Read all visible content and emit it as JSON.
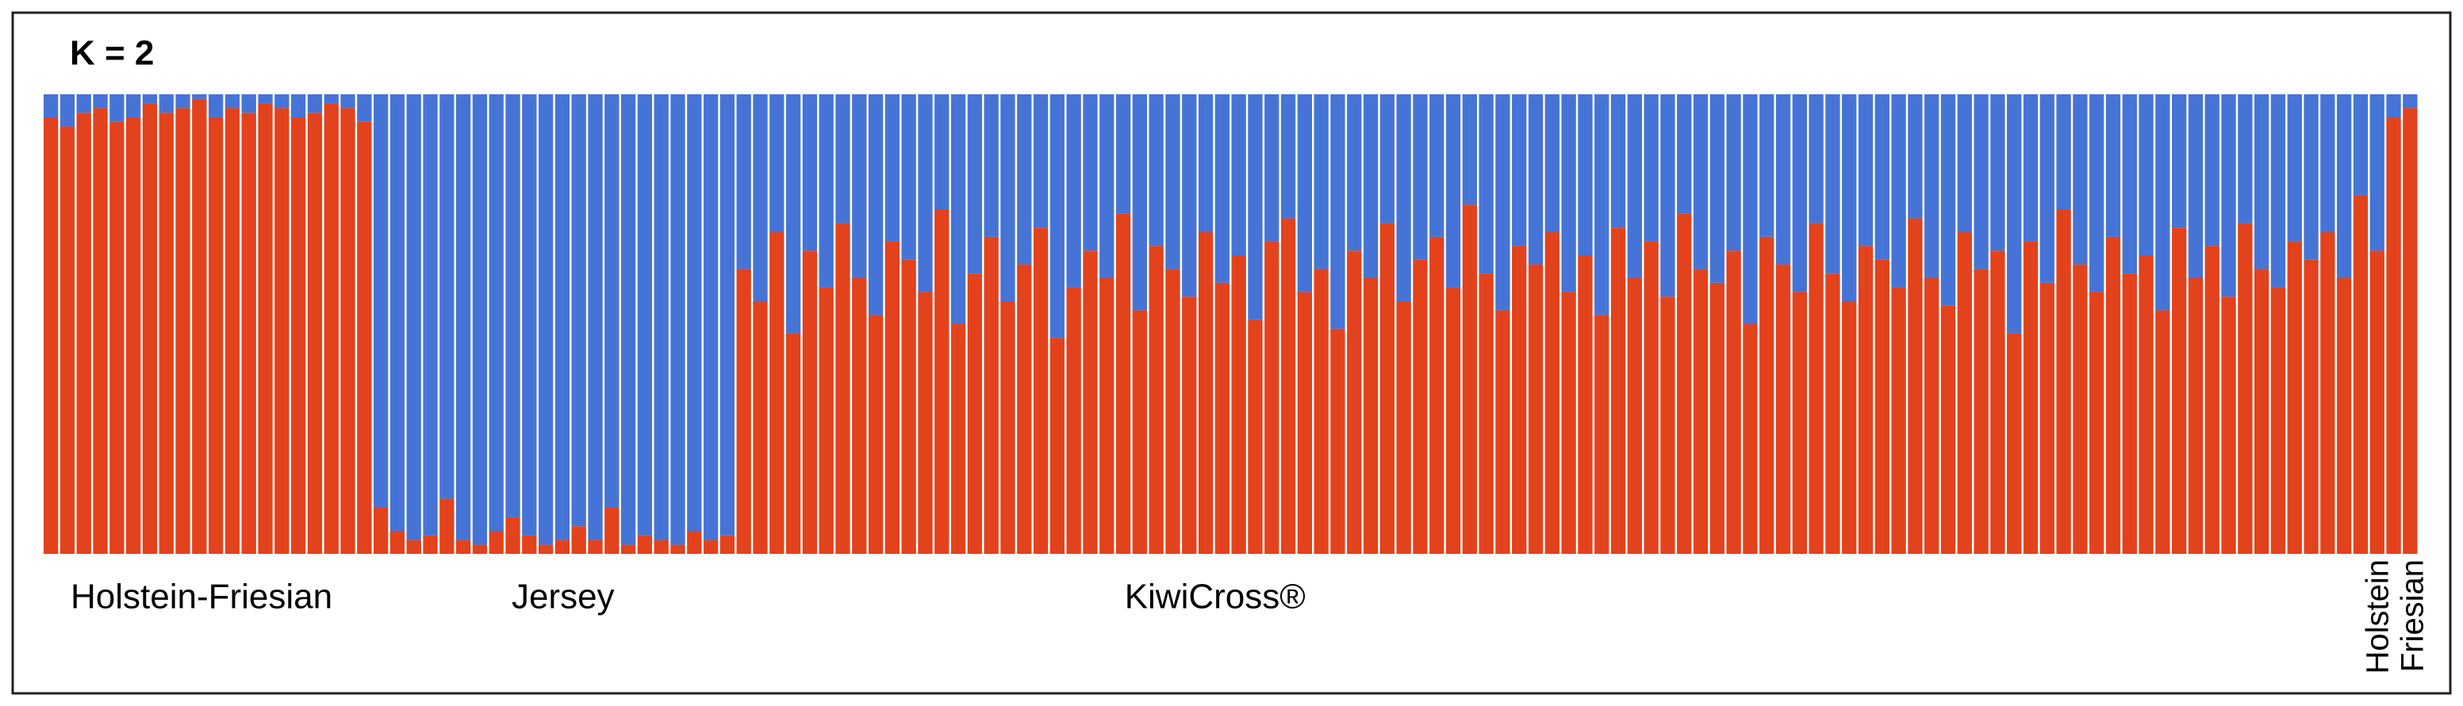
{
  "chart_data": {
    "type": "structure",
    "title": "K = 2",
    "ylim": [
      0,
      1
    ],
    "groups": [
      {
        "label": "Holstein-Friesian",
        "size": 20
      },
      {
        "label": "Jersey",
        "size": 22
      },
      {
        "label": "KiwiCross®",
        "size": 100
      },
      {
        "lines": [
          "Holstein",
          "Friesian"
        ],
        "size": 2
      }
    ],
    "series": [
      {
        "color": "#e2421c",
        "values": [
          0.95,
          0.93,
          0.96,
          0.97,
          0.94,
          0.95,
          0.98,
          0.96,
          0.97,
          0.99,
          0.95,
          0.97,
          0.96,
          0.98,
          0.97,
          0.95,
          0.96,
          0.98,
          0.97,
          0.94,
          0.1,
          0.05,
          0.03,
          0.04,
          0.12,
          0.03,
          0.02,
          0.05,
          0.08,
          0.04,
          0.02,
          0.03,
          0.06,
          0.03,
          0.1,
          0.02,
          0.04,
          0.03,
          0.02,
          0.05,
          0.03,
          0.04,
          0.62,
          0.55,
          0.7,
          0.48,
          0.66,
          0.58,
          0.72,
          0.6,
          0.52,
          0.68,
          0.64,
          0.57,
          0.75,
          0.5,
          0.61,
          0.69,
          0.55,
          0.63,
          0.71,
          0.47,
          0.58,
          0.66,
          0.6,
          0.74,
          0.53,
          0.67,
          0.62,
          0.56,
          0.7,
          0.59,
          0.65,
          0.51,
          0.68,
          0.73,
          0.57,
          0.62,
          0.49,
          0.66,
          0.6,
          0.72,
          0.55,
          0.64,
          0.69,
          0.58,
          0.76,
          0.61,
          0.53,
          0.67,
          0.63,
          0.7,
          0.57,
          0.65,
          0.52,
          0.71,
          0.6,
          0.68,
          0.56,
          0.74,
          0.62,
          0.59,
          0.66,
          0.5,
          0.69,
          0.63,
          0.57,
          0.72,
          0.61,
          0.55,
          0.67,
          0.64,
          0.58,
          0.73,
          0.6,
          0.54,
          0.7,
          0.62,
          0.66,
          0.48,
          0.68,
          0.59,
          0.75,
          0.63,
          0.57,
          0.69,
          0.61,
          0.65,
          0.53,
          0.71,
          0.6,
          0.67,
          0.56,
          0.72,
          0.62,
          0.58,
          0.68,
          0.64,
          0.7,
          0.6,
          0.78,
          0.66,
          0.95,
          0.97
        ]
      },
      {
        "color": "#4674d6",
        "values": [
          0.05,
          0.07,
          0.04,
          0.03,
          0.06,
          0.05,
          0.02,
          0.04,
          0.03,
          0.01,
          0.05,
          0.03,
          0.04,
          0.02,
          0.03,
          0.05,
          0.04,
          0.02,
          0.03,
          0.06,
          0.9,
          0.95,
          0.97,
          0.96,
          0.88,
          0.97,
          0.98,
          0.95,
          0.92,
          0.96,
          0.98,
          0.97,
          0.94,
          0.97,
          0.9,
          0.98,
          0.96,
          0.97,
          0.98,
          0.95,
          0.97,
          0.96,
          0.38,
          0.45,
          0.3,
          0.52,
          0.34,
          0.42,
          0.28,
          0.4,
          0.48,
          0.32,
          0.36,
          0.43,
          0.25,
          0.5,
          0.39,
          0.31,
          0.45,
          0.37,
          0.29,
          0.53,
          0.42,
          0.34,
          0.4,
          0.26,
          0.47,
          0.33,
          0.38,
          0.44,
          0.3,
          0.41,
          0.35,
          0.49,
          0.32,
          0.27,
          0.43,
          0.38,
          0.51,
          0.34,
          0.4,
          0.28,
          0.45,
          0.36,
          0.31,
          0.42,
          0.24,
          0.39,
          0.47,
          0.33,
          0.37,
          0.3,
          0.43,
          0.35,
          0.48,
          0.29,
          0.4,
          0.32,
          0.44,
          0.26,
          0.38,
          0.41,
          0.34,
          0.5,
          0.31,
          0.37,
          0.43,
          0.28,
          0.39,
          0.45,
          0.33,
          0.36,
          0.42,
          0.27,
          0.4,
          0.46,
          0.3,
          0.38,
          0.34,
          0.52,
          0.32,
          0.41,
          0.25,
          0.37,
          0.43,
          0.31,
          0.39,
          0.35,
          0.47,
          0.29,
          0.4,
          0.33,
          0.44,
          0.28,
          0.38,
          0.42,
          0.32,
          0.36,
          0.3,
          0.4,
          0.22,
          0.34,
          0.05,
          0.03
        ]
      }
    ]
  }
}
